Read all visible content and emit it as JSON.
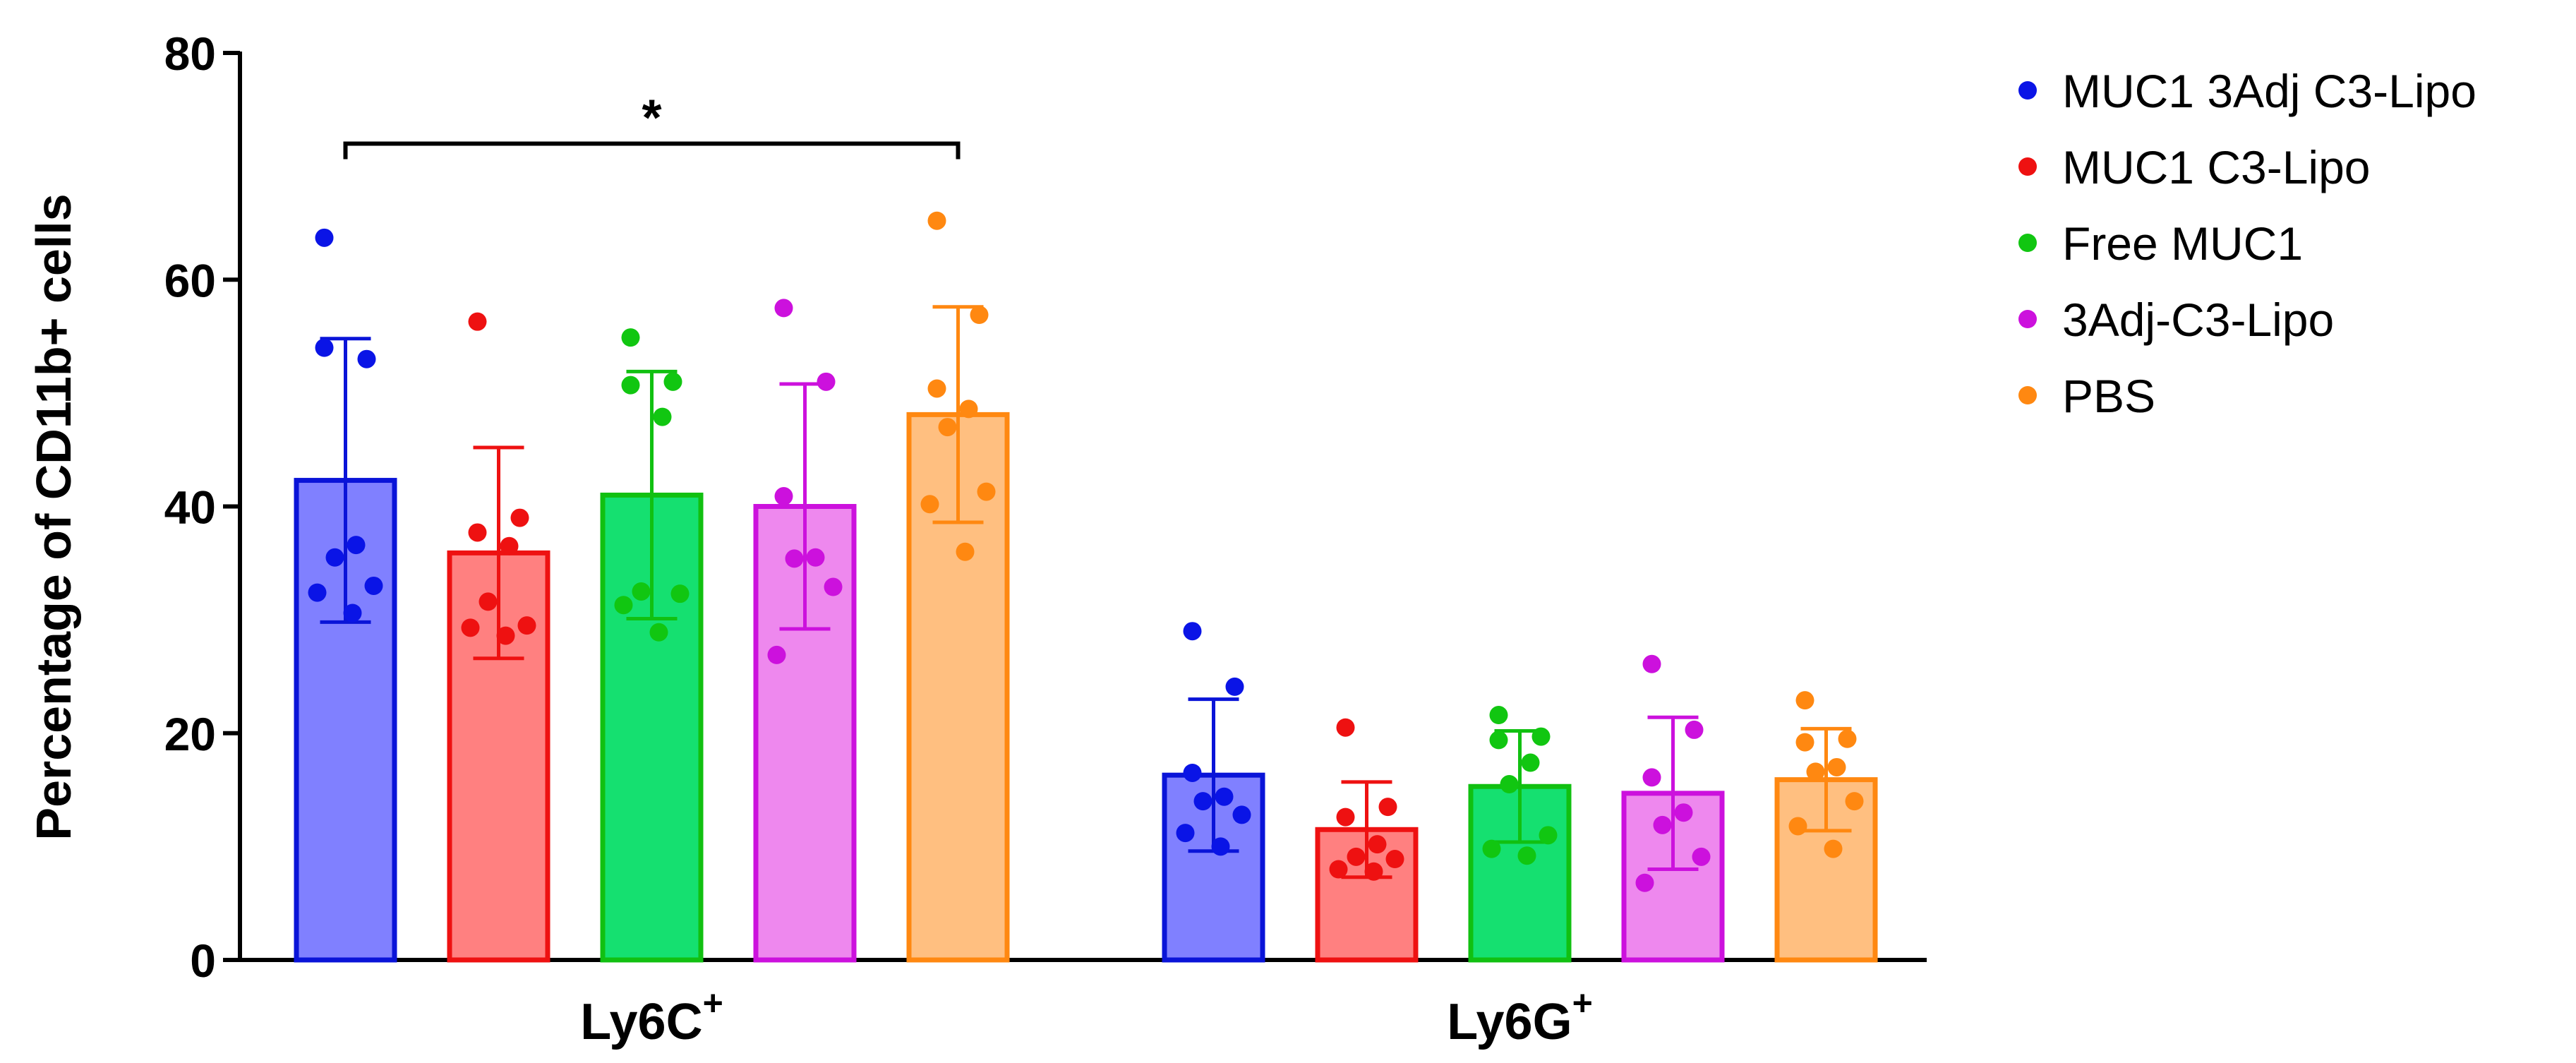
{
  "chart_data": {
    "type": "bar",
    "title": "",
    "xlabel": "",
    "ylabel": "Percentage of CD11b+ cells",
    "ylim": [
      0,
      80
    ],
    "yticks": [
      0,
      20,
      40,
      60,
      80
    ],
    "grid": false,
    "legend_position": "top-right",
    "categories": [
      {
        "label": "Ly6C",
        "sup": "+"
      },
      {
        "label": "Ly6G",
        "sup": "+"
      }
    ],
    "series": [
      {
        "name": "MUC1 3Adj C3-Lipo",
        "point_color": "#0A14E6",
        "bar_fill": "#8080FF",
        "bar_edge": "#0A14D8",
        "means": [
          42.3,
          16.3
        ],
        "sd": [
          12.5,
          6.7
        ],
        "points": [
          [
            63.7,
            53.0,
            54.0,
            36.6,
            35.5,
            33.0,
            32.4,
            30.6
          ],
          [
            29.0,
            24.1,
            16.5,
            14.4,
            14.0,
            12.8,
            11.2,
            10.0
          ]
        ]
      },
      {
        "name": "MUC1 C3-Lipo",
        "point_color": "#EE1111",
        "bar_fill": "#FF8080",
        "bar_edge": "#EE1111",
        "means": [
          35.9,
          11.5
        ],
        "sd": [
          9.3,
          4.2
        ],
        "points": [
          [
            56.3,
            39.0,
            37.7,
            36.5,
            31.6,
            29.5,
            29.3,
            28.6
          ],
          [
            20.5,
            13.5,
            12.6,
            10.2,
            9.1,
            8.9,
            8.0,
            7.8
          ]
        ]
      },
      {
        "name": "Free MUC1",
        "point_color": "#11C611",
        "bar_fill": "#15E070",
        "bar_edge": "#11C011",
        "means": [
          41.0,
          15.3
        ],
        "sd": [
          10.9,
          4.9
        ],
        "points": [
          [
            54.9,
            51.0,
            50.7,
            47.9,
            32.5,
            32.3,
            31.3,
            28.9
          ],
          [
            21.6,
            19.7,
            19.4,
            17.4,
            15.5,
            11.0,
            9.8,
            9.2
          ]
        ]
      },
      {
        "name": "3Adj-C3-Lipo",
        "point_color": "#CC11DD",
        "bar_fill": "#EE88EE",
        "bar_edge": "#CC11DD",
        "means": [
          40.0,
          14.7
        ],
        "sd": [
          10.8,
          6.7
        ],
        "points": [
          [
            57.5,
            51.0,
            40.9,
            35.5,
            35.4,
            32.9,
            26.9
          ],
          [
            26.1,
            20.3,
            16.1,
            13.0,
            11.9,
            9.1,
            6.8
          ]
        ]
      },
      {
        "name": "PBS",
        "point_color": "#FF8811",
        "bar_fill": "#FFBF80",
        "bar_edge": "#FF8811",
        "means": [
          48.1,
          15.9
        ],
        "sd": [
          9.5,
          4.5
        ],
        "points": [
          [
            65.2,
            56.9,
            50.4,
            48.6,
            47.0,
            41.3,
            40.2,
            36.0
          ],
          [
            22.9,
            19.5,
            19.2,
            17.0,
            16.6,
            14.0,
            11.8,
            9.8
          ]
        ]
      }
    ],
    "annotations": [
      {
        "text": "*",
        "category": 0,
        "from_series": 0,
        "to_series": 4,
        "y": 72
      }
    ]
  }
}
